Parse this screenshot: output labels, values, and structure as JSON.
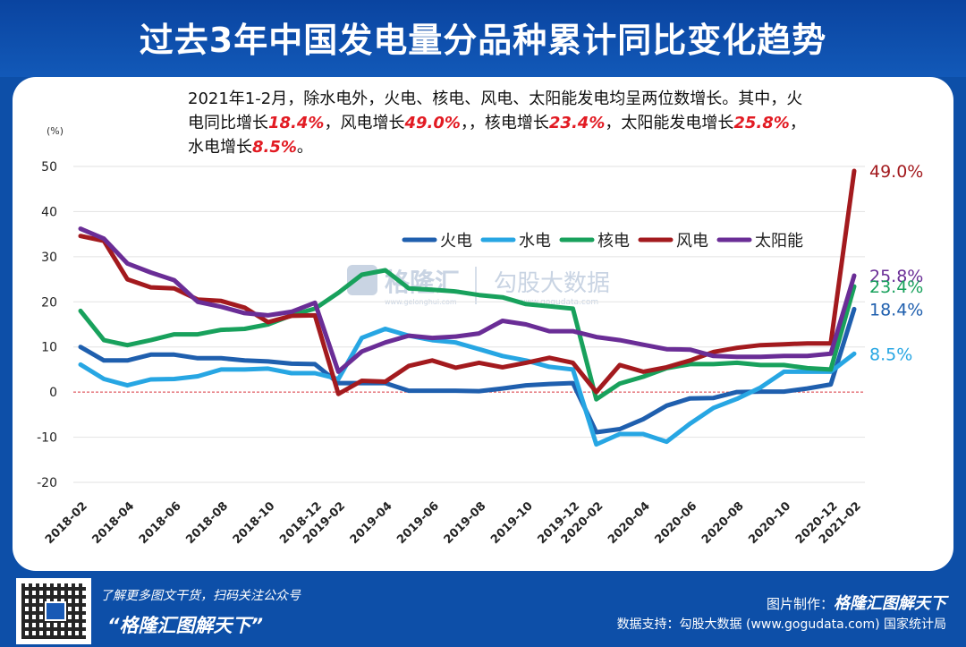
{
  "title": "过去3年中国发电量分品种累计同比变化趋势",
  "summary": {
    "p1": "2021年1-2月，除水电外，火电、核电、风电、太阳能发电均呈两位数增长。其中，火电同比增长",
    "v1": "18.4%",
    "p2": "，风电增长",
    "v2": "49.0%",
    "p3": "，，核电增长",
    "v3": "23.4%",
    "p4": "，太阳能发电增长",
    "v4": "25.8%",
    "p5": "，水电增长",
    "v5": "8.5%",
    "p6": "。"
  },
  "watermark": {
    "brand": "格隆汇",
    "brand_url": "www.gelonghui.com",
    "partner": "勾股大数据",
    "partner_url": "www.gogudata.com"
  },
  "footer": {
    "line1": "了解更多图文干货，扫码关注公众号",
    "line2": "“格隆汇图解天下”",
    "credit_label": "图片制作：",
    "credit_name": "格隆汇图解天下",
    "source": "数据支持：勾股大数据 (www.gogudata.com) 国家统计局",
    "logo": "格隆汇"
  },
  "colors": {
    "title_bg": "#0d4fa8",
    "火电": "#1f5fae",
    "水电": "#27a6e3",
    "核电": "#18a15c",
    "风电": "#a31a1e",
    "太阳能": "#6a2d96",
    "end_label_red": "#a31a1e",
    "zero_line": "#d9363e"
  },
  "chart_data": {
    "type": "line",
    "ylabel": "(%)",
    "ylim": [
      -20,
      50
    ],
    "yticks": [
      -20,
      -10,
      0,
      10,
      20,
      30,
      40,
      50
    ],
    "x": [
      "2018-02",
      "2018-03",
      "2018-04",
      "2018-05",
      "2018-06",
      "2018-07",
      "2018-08",
      "2018-09",
      "2018-10",
      "2018-11",
      "2018-12",
      "2019-02",
      "2019-03",
      "2019-04",
      "2019-05",
      "2019-06",
      "2019-07",
      "2019-08",
      "2019-09",
      "2019-10",
      "2019-11",
      "2019-12",
      "2020-02",
      "2020-03",
      "2020-04",
      "2020-05",
      "2020-06",
      "2020-07",
      "2020-08",
      "2020-09",
      "2020-10",
      "2020-11",
      "2020-12",
      "2021-02"
    ],
    "xtick_labels": [
      "2018-02",
      "2018-04",
      "2018-06",
      "2018-08",
      "2018-10",
      "2018-12",
      "2019-02",
      "2019-04",
      "2019-06",
      "2019-08",
      "2019-10",
      "2019-12",
      "2020-02",
      "2020-04",
      "2020-06",
      "2020-08",
      "2020-10",
      "2020-12",
      "2021-02"
    ],
    "legend_position": "upper-center",
    "series": [
      {
        "name": "火电",
        "values": [
          10,
          7,
          7,
          8.3,
          8.3,
          7.5,
          7.5,
          7,
          6.8,
          6.3,
          6.2,
          2,
          2,
          2,
          0.3,
          0.3,
          0.3,
          0.2,
          0.8,
          1.5,
          1.8,
          2,
          -8.9,
          -8.2,
          -6,
          -3,
          -1.4,
          -1.3,
          0,
          0.1,
          0.1,
          0.8,
          1.7,
          18.4
        ]
      },
      {
        "name": "水电",
        "values": [
          6.1,
          2.9,
          1.5,
          2.8,
          2.9,
          3.5,
          5,
          5,
          5.2,
          4.2,
          4.2,
          2.9,
          12,
          14,
          12.5,
          11.5,
          11,
          9.5,
          8,
          7,
          5.6,
          5,
          -11.6,
          -9.3,
          -9.3,
          -11,
          -7,
          -3.5,
          -1.5,
          1,
          4.5,
          4.5,
          4.5,
          8.5
        ]
      },
      {
        "name": "核电",
        "values": [
          18,
          11.5,
          10.4,
          11.5,
          12.8,
          12.8,
          13.8,
          14,
          15,
          17,
          18.5,
          22,
          26,
          27,
          23,
          22.7,
          22.3,
          21.5,
          21,
          19.5,
          19,
          18.5,
          -1.6,
          1.9,
          3.4,
          5.3,
          6.2,
          6.2,
          6.5,
          6,
          6,
          5.3,
          5,
          23.4
        ]
      },
      {
        "name": "风电",
        "values": [
          34.6,
          33.5,
          25,
          23.2,
          23,
          20.5,
          20.2,
          18.7,
          15.5,
          16.9,
          17,
          -0.4,
          2.5,
          2.3,
          5.8,
          7,
          5.4,
          6.5,
          5.5,
          6.5,
          7.6,
          6.5,
          0,
          6,
          4.5,
          5.5,
          7,
          8.9,
          9.8,
          10.4,
          10.6,
          10.8,
          10.8,
          49
        ]
      },
      {
        "name": "太阳能",
        "values": [
          36.2,
          34,
          28.5,
          26.5,
          24.8,
          20,
          18.9,
          17.5,
          17,
          17.8,
          19.8,
          4.5,
          9,
          11,
          12.5,
          12,
          12.3,
          13,
          15.8,
          15,
          13.5,
          13.5,
          12.2,
          11.5,
          10.5,
          9.5,
          9.4,
          8,
          7.8,
          7.8,
          8,
          8,
          8.5,
          25.8
        ]
      }
    ],
    "end_labels": [
      {
        "series": "风电",
        "text": "49.0%"
      },
      {
        "series": "太阳能",
        "text": "25.8%"
      },
      {
        "series": "核电",
        "text": "23.4%"
      },
      {
        "series": "火电",
        "text": "18.4%"
      },
      {
        "series": "水电",
        "text": "8.5%"
      }
    ]
  }
}
